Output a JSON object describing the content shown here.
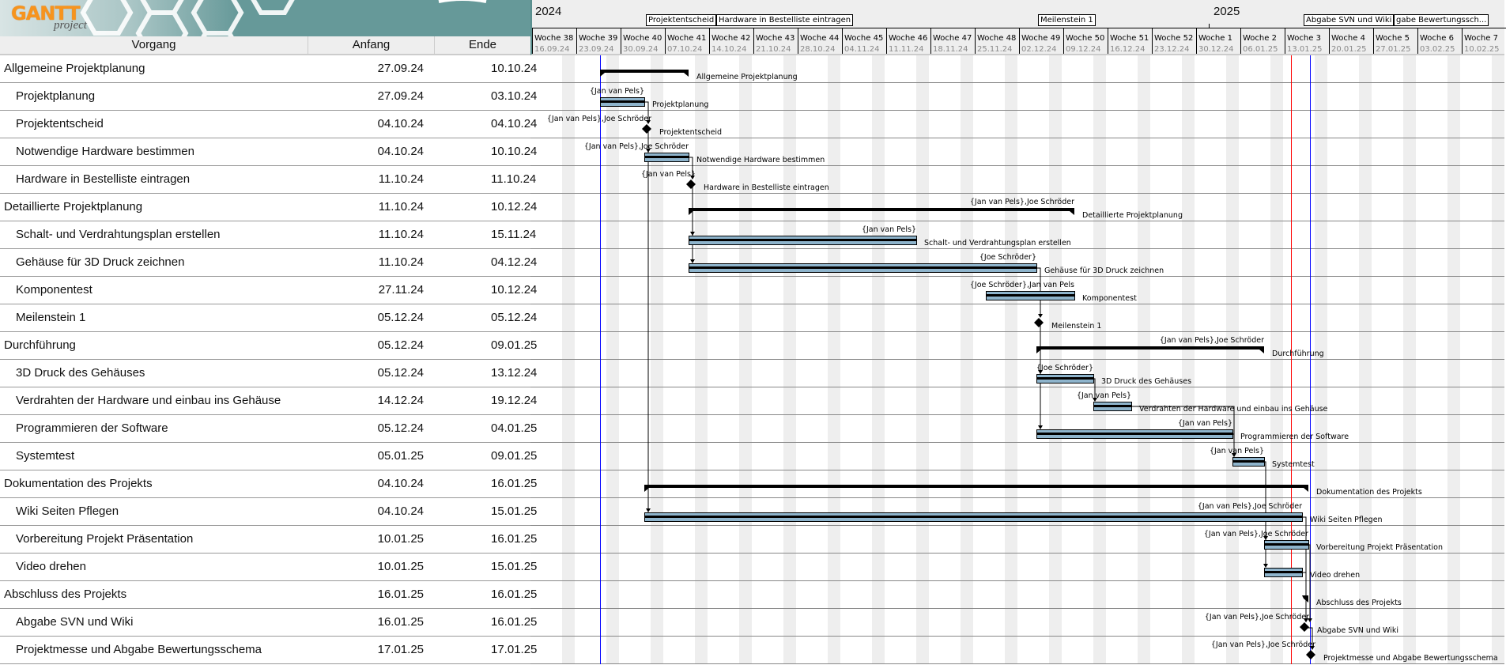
{
  "app": {
    "logo_text": "GANTT",
    "logo_sub": "project"
  },
  "columns": {
    "name": "Vorgang",
    "start": "Anfang",
    "end": "Ende"
  },
  "timeline": {
    "years": [
      {
        "label": "2024",
        "date": "16.09.24"
      },
      {
        "label": "2025",
        "date": "01.01.25"
      }
    ],
    "weeks": [
      {
        "label": "Woche 38",
        "date": "16.09.24"
      },
      {
        "label": "Woche 39",
        "date": "23.09.24"
      },
      {
        "label": "Woche 40",
        "date": "30.09.24"
      },
      {
        "label": "Woche 41",
        "date": "07.10.24"
      },
      {
        "label": "Woche 42",
        "date": "14.10.24"
      },
      {
        "label": "Woche 43",
        "date": "21.10.24"
      },
      {
        "label": "Woche 44",
        "date": "28.10.24"
      },
      {
        "label": "Woche 45",
        "date": "04.11.24"
      },
      {
        "label": "Woche 46",
        "date": "11.11.24"
      },
      {
        "label": "Woche 47",
        "date": "18.11.24"
      },
      {
        "label": "Woche 48",
        "date": "25.11.24"
      },
      {
        "label": "Woche 49",
        "date": "02.12.24"
      },
      {
        "label": "Woche 50",
        "date": "09.12.24"
      },
      {
        "label": "Woche 51",
        "date": "16.12.24"
      },
      {
        "label": "Woche 52",
        "date": "23.12.24"
      },
      {
        "label": "Woche 1",
        "date": "30.12.24"
      },
      {
        "label": "Woche 2",
        "date": "06.01.25"
      },
      {
        "label": "Woche 3",
        "date": "13.01.25"
      },
      {
        "label": "Woche 4",
        "date": "20.01.25"
      },
      {
        "label": "Woche 5",
        "date": "27.01.25"
      },
      {
        "label": "Woche 6",
        "date": "03.02.25"
      },
      {
        "label": "Woche 7",
        "date": "10.02.25"
      }
    ],
    "milestone_boxes": [
      {
        "text": "Projektentscheid",
        "date": "04.10.24"
      },
      {
        "text": "Hardware in Bestelliste eintragen",
        "date": "11.10.24"
      },
      {
        "text": "Meilenstein 1",
        "date": "05.12.24"
      },
      {
        "text": "Abgabe SVN und Wiki",
        "date": "16.01.25"
      },
      {
        "text": "gabe Bewertungssch...",
        "date": "17.01.25"
      }
    ],
    "today": "14.01.25",
    "project_start": "27.09.24",
    "project_end": "17.01.25",
    "colors": {
      "bar": "#8eb4cc",
      "today": "#ff0000",
      "project_marker": "#0000ff",
      "weekend": "#eeeeee"
    }
  },
  "tasks": [
    {
      "name": "Allgemeine Projektplanung",
      "start": "27.09.24",
      "end": "10.10.24",
      "type": "summary",
      "resources": ""
    },
    {
      "name": "Projektplanung",
      "start": "27.09.24",
      "end": "03.10.24",
      "type": "task",
      "resources": "{Jan van Pels}",
      "progress": 100
    },
    {
      "name": "Projektentscheid",
      "start": "04.10.24",
      "end": "04.10.24",
      "type": "milestone",
      "resources": "{Jan van Pels},Joe Schröder"
    },
    {
      "name": "Notwendige Hardware bestimmen",
      "start": "04.10.24",
      "end": "10.10.24",
      "type": "task",
      "resources": "{Jan van Pels},Joe Schröder",
      "progress": 100
    },
    {
      "name": "Hardware in Bestelliste eintragen",
      "start": "11.10.24",
      "end": "11.10.24",
      "type": "milestone",
      "resources": "{Jan van Pels}"
    },
    {
      "name": "Detaillierte Projektplanung",
      "start": "11.10.24",
      "end": "10.12.24",
      "type": "summary",
      "resources": "{Jan van Pels},Joe Schröder"
    },
    {
      "name": "Schalt- und Verdrahtungsplan erstellen",
      "start": "11.10.24",
      "end": "15.11.24",
      "type": "task",
      "resources": "{Jan van Pels}",
      "progress": 100
    },
    {
      "name": "Gehäuse für 3D Druck zeichnen",
      "start": "11.10.24",
      "end": "04.12.24",
      "type": "task",
      "resources": "{Joe Schröder}",
      "progress": 100
    },
    {
      "name": "Komponentest",
      "start": "27.11.24",
      "end": "10.12.24",
      "type": "task",
      "resources": "{Joe Schröder},Jan van Pels",
      "progress": 100
    },
    {
      "name": "Meilenstein 1",
      "start": "05.12.24",
      "end": "05.12.24",
      "type": "milestone",
      "resources": ""
    },
    {
      "name": "Durchführung",
      "start": "05.12.24",
      "end": "09.01.25",
      "type": "summary",
      "resources": "{Jan van Pels},Joe Schröder"
    },
    {
      "name": "3D Druck des Gehäuses",
      "start": "05.12.24",
      "end": "13.12.24",
      "type": "task",
      "resources": "{Joe Schröder}",
      "progress": 100
    },
    {
      "name": "Verdrahten der Hardware und einbau ins Gehäuse",
      "start": "14.12.24",
      "end": "19.12.24",
      "type": "task",
      "resources": "{Jan van Pels}",
      "progress": 100
    },
    {
      "name": "Programmieren der Software",
      "start": "05.12.24",
      "end": "04.01.25",
      "type": "task",
      "resources": "{Jan van Pels}",
      "progress": 100
    },
    {
      "name": "Systemtest",
      "start": "05.01.25",
      "end": "09.01.25",
      "type": "task",
      "resources": "{Jan van Pels}",
      "progress": 100
    },
    {
      "name": "Dokumentation des Projekts",
      "start": "04.10.24",
      "end": "16.01.25",
      "type": "summary",
      "resources": ""
    },
    {
      "name": "Wiki Seiten Pflegen",
      "start": "04.10.24",
      "end": "15.01.25",
      "type": "task",
      "resources": "{Jan van Pels},Joe Schröder",
      "progress": 100
    },
    {
      "name": "Vorbereitung Projekt Präsentation",
      "start": "10.01.25",
      "end": "16.01.25",
      "type": "task",
      "resources": "{Jan van Pels},Joe Schröder",
      "progress": 100
    },
    {
      "name": "Video drehen",
      "start": "10.01.25",
      "end": "15.01.25",
      "type": "task",
      "resources": "",
      "progress": 100
    },
    {
      "name": "Abschluss des Projekts",
      "start": "16.01.25",
      "end": "16.01.25",
      "type": "summary",
      "resources": ""
    },
    {
      "name": "Abgabe SVN und Wiki",
      "start": "16.01.25",
      "end": "16.01.25",
      "type": "milestone",
      "resources": "{Jan van Pels},Joe Schröder"
    },
    {
      "name": "Projektmesse und Abgabe Bewertungsschema",
      "start": "17.01.25",
      "end": "17.01.25",
      "type": "milestone",
      "resources": "{Jan van Pels},Joe Schröder"
    }
  ],
  "dependencies": [
    [
      1,
      2
    ],
    [
      2,
      3
    ],
    [
      2,
      16
    ],
    [
      3,
      4
    ],
    [
      4,
      6
    ],
    [
      4,
      7
    ],
    [
      7,
      9
    ],
    [
      9,
      11
    ],
    [
      9,
      13
    ],
    [
      11,
      12
    ],
    [
      13,
      14
    ],
    [
      12,
      14
    ],
    [
      14,
      17
    ],
    [
      14,
      18
    ],
    [
      16,
      20
    ],
    [
      17,
      20
    ],
    [
      18,
      20
    ],
    [
      20,
      21
    ]
  ]
}
